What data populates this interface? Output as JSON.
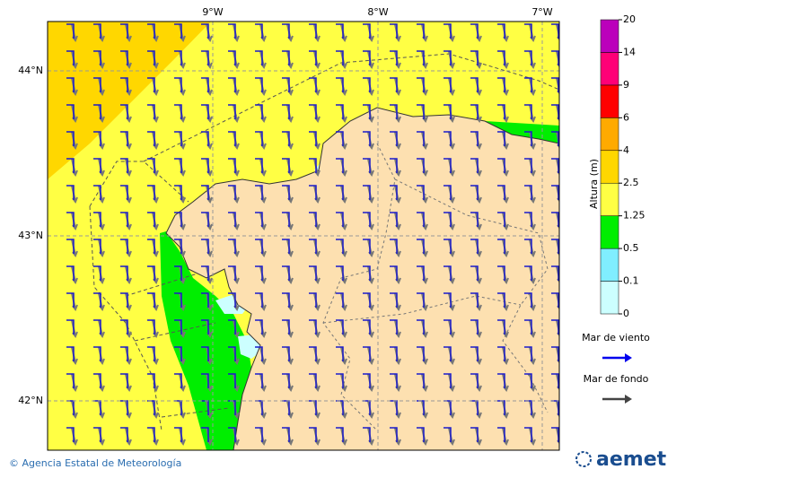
{
  "map": {
    "lon_labels": [
      "9°W",
      "8°W",
      "7°W"
    ],
    "lat_labels": [
      "44°N",
      "43°N",
      "42°N"
    ]
  },
  "colorbar": {
    "title": "Altura (m)",
    "levels": [
      0,
      0.1,
      0.5,
      1.25,
      2.5,
      4,
      6,
      9,
      14,
      20
    ],
    "colors": [
      "#ccffff",
      "#80eeff",
      "#00ee00",
      "#ffff44",
      "#ffd700",
      "#ffaa00",
      "#ff0000",
      "#ff0077",
      "#bb00bb"
    ]
  },
  "legend": {
    "items": [
      {
        "label": "Mar de viento",
        "color": "#0000ee"
      },
      {
        "label": "Mar de fondo",
        "color": "#444444"
      }
    ]
  },
  "footer": {
    "credit": "© Agencia Estatal de Meteorología",
    "logo": "aemet"
  }
}
